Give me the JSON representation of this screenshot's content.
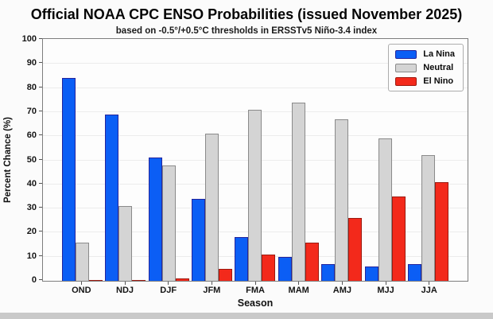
{
  "chart_data": {
    "type": "bar",
    "title": "Official NOAA CPC ENSO Probabilities (issued November 2025)",
    "subtitle": "based on -0.5°/+0.5°C thresholds in ERSSTv5 Niño-3.4 index",
    "xlabel": "Season",
    "ylabel": "Percent Chance (%)",
    "ylim": [
      0,
      100
    ],
    "yticks": [
      0,
      10,
      20,
      30,
      40,
      50,
      60,
      70,
      80,
      90,
      100
    ],
    "grid": "horizontal",
    "legend_position": "upper right",
    "categories": [
      "OND",
      "NDJ",
      "DJF",
      "JFM",
      "FMA",
      "MAM",
      "AMJ",
      "MJJ",
      "JJA"
    ],
    "series": [
      {
        "name": "La Nina",
        "fill": "#0b5ef5",
        "edge": "#24249c",
        "values": [
          84,
          69,
          51,
          34,
          18,
          10,
          7,
          6,
          7
        ]
      },
      {
        "name": "Neutral",
        "fill": "#d4d4d4",
        "edge": "#8a8a8a",
        "values": [
          16,
          31,
          48,
          61,
          71,
          74,
          67,
          59,
          52
        ]
      },
      {
        "name": "El Nino",
        "fill": "#f3291b",
        "edge": "#9c1a10",
        "values": [
          0,
          0,
          1,
          5,
          11,
          16,
          26,
          35,
          41
        ]
      }
    ]
  },
  "colors": {
    "plot_border": "#7e7e7e",
    "gridline": "#ececec",
    "figure_bg": "#fbfbfb",
    "bottom_strip": "#c9c9c9"
  }
}
